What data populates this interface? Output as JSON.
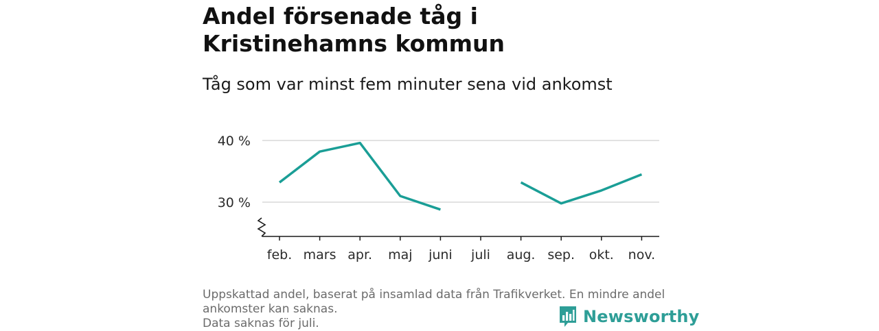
{
  "header": {
    "title": "Andel försenade tåg i Kristinehamns kommun",
    "subtitle": "Tåg som var minst fem minuter sena vid ankomst"
  },
  "chart_data": {
    "type": "line",
    "categories": [
      "feb.",
      "mars",
      "apr.",
      "maj",
      "juni",
      "juli",
      "aug.",
      "sep.",
      "okt.",
      "nov."
    ],
    "series": [
      {
        "values": [
          33.2,
          38.2,
          39.6,
          31.0,
          28.8,
          null,
          33.2,
          29.8,
          31.9,
          34.5
        ]
      }
    ],
    "y_ticks": [
      30,
      40
    ],
    "y_tick_labels": [
      "30 %",
      "40 %"
    ],
    "ylim": [
      25,
      43
    ],
    "y_axis_break": true,
    "grid": true,
    "line_color": "#1a9e96"
  },
  "footer": {
    "notes": [
      "Uppskattad andel, baserat på insamlad data från Trafikverket. En mindre andel",
      "ankomster kan saknas.",
      "Data saknas för juli."
    ],
    "brand": "Newsworthy",
    "brand_icon": "newsworthy-logo-icon",
    "brand_color": "#2e9e97"
  }
}
